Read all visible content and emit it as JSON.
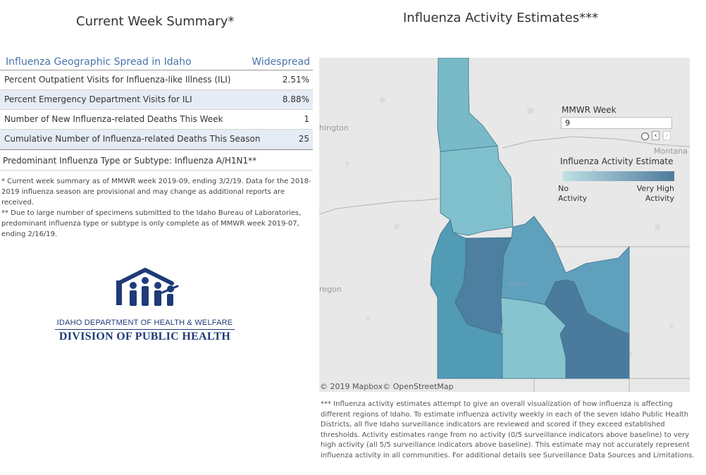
{
  "summary": {
    "title": "Current Week Summary*",
    "header_left": "Influenza Geographic Spread in Idaho",
    "header_right": "Widespread",
    "rows": [
      {
        "label": "Percent Outpatient Visits for Influenza-like Illness (ILI)",
        "value": "2.51%"
      },
      {
        "label": "Percent Emergency Department Visits for ILI",
        "value": "8.88%"
      },
      {
        "label": "Number of New Influenza-related Deaths This Week",
        "value": "1"
      },
      {
        "label": "Cumulative Number of Influenza-related Deaths This Season",
        "value": "25"
      }
    ],
    "predominant": "Predominant Influenza Type or Subtype: Influenza A/H1N1**",
    "note1": "* Current week summary as of MMWR week 2019-09, ending 3/2/19. Data for the 2018-2019 influenza season are provisional and may change as additional reports are received.",
    "note2": "** Due to large number of specimens submitted to the Idaho Bureau of Laboratories, predominant influenza type or subtype is only complete as of MMWR week 2019-07, ending 2/16/19."
  },
  "logo": {
    "dept": "IDAHO DEPARTMENT OF HEALTH & WELFARE",
    "division": "DIVISION OF PUBLIC HEALTH"
  },
  "map": {
    "title": "Influenza Activity Estimates***",
    "labels": {
      "washington": "hington",
      "oregon": "regon",
      "montana": "Montana",
      "idaho": "Idaho"
    },
    "attribution": "© 2019 Mapbox© OpenStreetMap",
    "week_label": "MMWR Week",
    "week_value": "9",
    "legend_title": "Influenza Activity Estimate",
    "legend_low": [
      "No",
      "Activity"
    ],
    "legend_high": [
      "Very High",
      "Activity"
    ],
    "colors": {
      "low": "#bfe0e5",
      "high": "#4e7a9c"
    },
    "districts": [
      {
        "name": "district-1",
        "color": "#79bac8"
      },
      {
        "name": "district-2",
        "color": "#80c0cc"
      },
      {
        "name": "district-3",
        "color": "#519bb5"
      },
      {
        "name": "district-4",
        "color": "#4d7fa1"
      },
      {
        "name": "district-5",
        "color": "#86c4cf"
      },
      {
        "name": "district-6",
        "color": "#4a7b9d"
      },
      {
        "name": "district-7",
        "color": "#5fa1bc"
      }
    ],
    "footnote": "*** Influenza activity estimates attempt to give an overall visualization of how influenza is affecting different regions of Idaho. To estimate influenza activity weekly in each of the seven Idaho Public Health Districts, all five Idaho surveillance indicators are reviewed and scored if they exceed established thresholds. Activity estimates range from no activity (0/5 surveillance indicators above baseline) to very high activity (all 5/5 surveillance indicators above baseline). This estimate may not accurately represent influenza activity in all communities. For additional details see Surveillance Data Sources and Limitations."
  }
}
